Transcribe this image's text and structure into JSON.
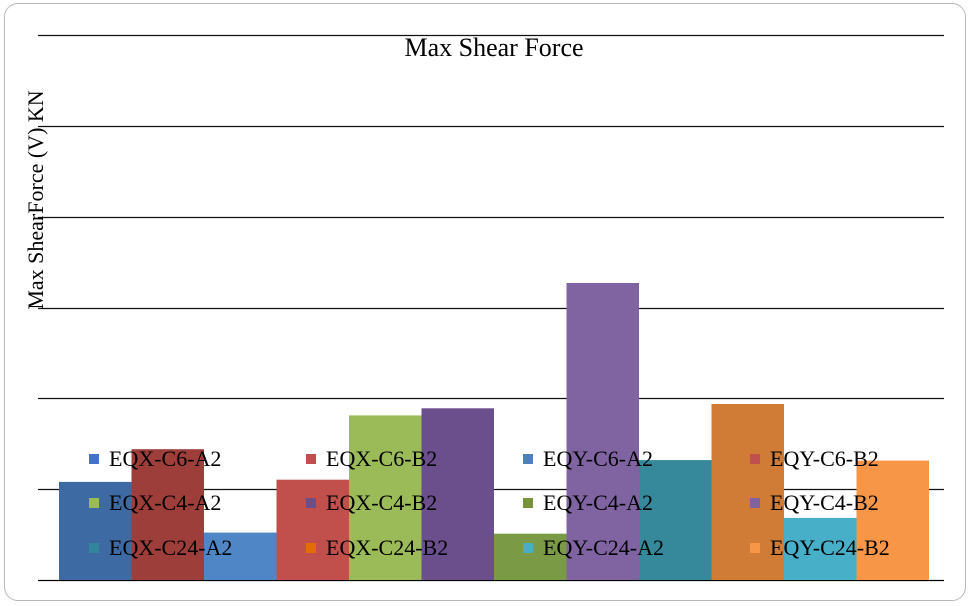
{
  "chart_data": {
    "type": "bar",
    "title": "Max Shear Force",
    "ylabel": "Max ShearForce (V) KN",
    "xlabel": "",
    "ylim": [
      0,
      100
    ],
    "grid": true,
    "legend_position": "inside-bottom",
    "series": [
      {
        "name": "EQX-C6-A2",
        "color": "#4472C4",
        "values": [
          18.0
        ]
      },
      {
        "name": "EQX-C6-B2",
        "color": "#C0504D",
        "values": [
          24.0
        ]
      },
      {
        "name": "EQY-C6-A2",
        "color": "#4F81BD",
        "values": [
          8.7
        ]
      },
      {
        "name": "EQY-C6-B2",
        "color": "#C0504D",
        "values": [
          18.4
        ]
      },
      {
        "name": "EQX-C4-A2",
        "color": "#9BBB59",
        "values": [
          30.2
        ]
      },
      {
        "name": "EQX-C4-B2",
        "color": "#6A4F8C",
        "values": [
          31.5
        ]
      },
      {
        "name": "EQY-C4-A2",
        "color": "#77933C",
        "values": [
          8.5
        ]
      },
      {
        "name": "EQY-C4-B2",
        "color": "#8064A2",
        "values": [
          54.5
        ]
      },
      {
        "name": "EQX-C24-A2",
        "color": "#31859C",
        "values": [
          22.0
        ]
      },
      {
        "name": "EQX-C24-B2",
        "color": "#E46C0A",
        "values": [
          32.3
        ]
      },
      {
        "name": "EQY-C24-A2",
        "color": "#4BACC6",
        "values": [
          11.4
        ]
      },
      {
        "name": "EQY-C24-B2",
        "color": "#F79646",
        "values": [
          21.9
        ]
      }
    ],
    "bar_colors_rendered": [
      "#3E6AA3",
      "#9E3E3B",
      "#4E86C6",
      "#C14F4C",
      "#9BBB59",
      "#6A4F8C",
      "#7A9A46",
      "#8064A2",
      "#35899B",
      "#D07B36",
      "#48AFC9",
      "#F79646"
    ]
  }
}
